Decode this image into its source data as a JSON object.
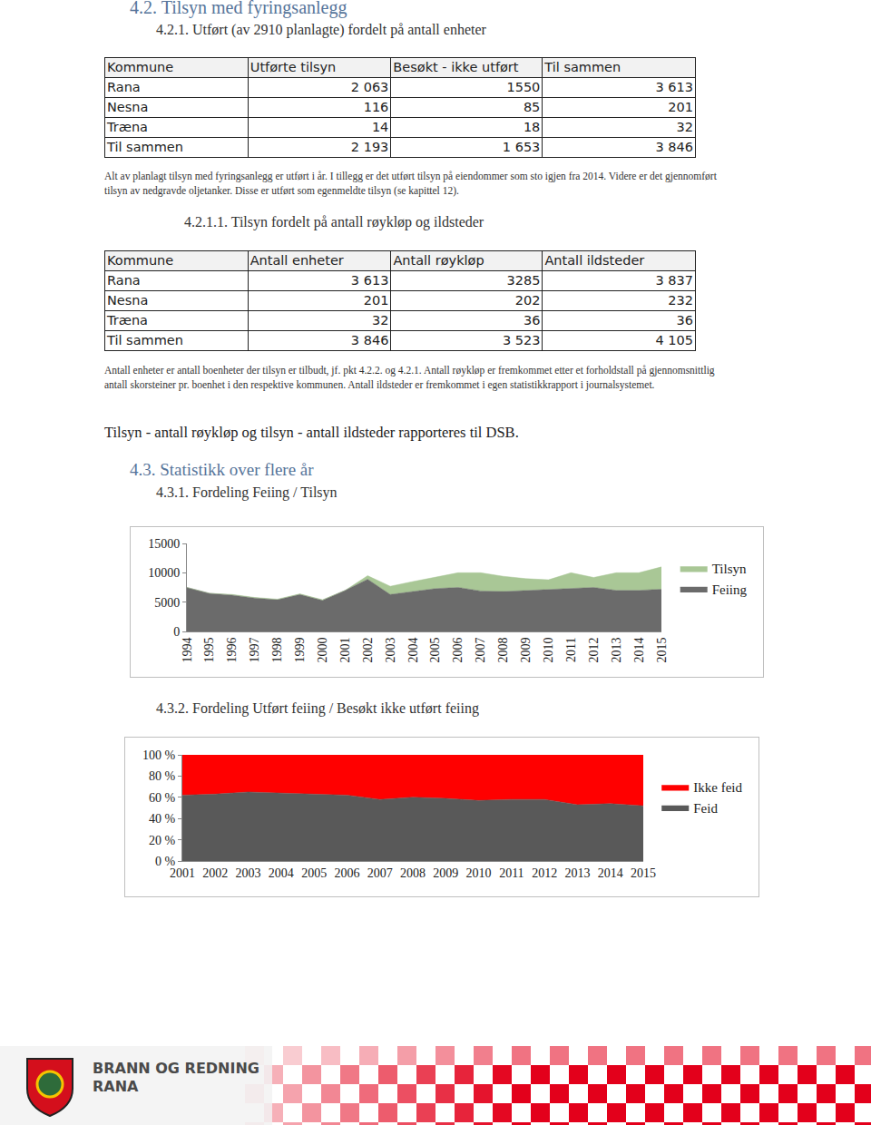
{
  "header": {
    "section": "4.2. Tilsyn med fyringsanlegg",
    "subsection": "4.2.1. Utført (av 2910 planlagte) fordelt på antall enheter"
  },
  "table1": {
    "columns": [
      "Kommune",
      "Utførte tilsyn",
      "Besøkt - ikke utført",
      "Til sammen"
    ],
    "rows": [
      [
        "Rana",
        "2 063",
        "1550",
        "3 613"
      ],
      [
        "Nesna",
        "116",
        "85",
        "201"
      ],
      [
        "Træna",
        "14",
        "18",
        "32"
      ],
      [
        "Til sammen",
        "2 193",
        "1 653",
        "3 846"
      ]
    ]
  },
  "note1": "Alt av planlagt tilsyn med fyringsanlegg er utført i år. I tillegg er det utført tilsyn på eiendommer som sto igjen fra 2014. Videre er det gjennomført tilsyn av nedgravde oljetanker. Disse er utført som egenmeldte tilsyn (se kapittel 12).",
  "subsection2": "4.2.1.1. Tilsyn fordelt på antall røykløp og ildsteder",
  "table2": {
    "columns": [
      "Kommune",
      "Antall enheter",
      "Antall røykløp",
      "Antall ildsteder"
    ],
    "rows": [
      [
        "Rana",
        "3 613",
        "3285",
        "3 837"
      ],
      [
        "Nesna",
        "201",
        "202",
        "232"
      ],
      [
        "Træna",
        "32",
        "36",
        "36"
      ],
      [
        "Til sammen",
        "3 846",
        "3 523",
        "4 105"
      ]
    ]
  },
  "note2": "Antall enheter er antall boenheter der tilsyn er tilbudt, jf. pkt 4.2.2. og 4.2.1. Antall røykløp er fremkommet etter et forholdstall på gjennomsnittlig antall skorsteiner pr. boenhet i den respektive kommunen. Antall ildsteder er fremkommet i egen statistikkrapport i journalsystemet.",
  "paragraph": "Tilsyn - antall røykløp og tilsyn - antall ildsteder rapporteres til DSB.",
  "section2": "4.3. Statistikk over flere år",
  "chart_data": [
    {
      "type": "area",
      "title": "4.3.1. Fordeling Feiing / Tilsyn",
      "stacked": true,
      "grid": false,
      "legend": "right",
      "categories": [
        "1994",
        "1995",
        "1996",
        "1997",
        "1998",
        "1999",
        "2000",
        "2001",
        "2002",
        "2003",
        "2004",
        "2005",
        "2006",
        "2007",
        "2008",
        "2009",
        "2010",
        "2011",
        "2012",
        "2013",
        "2014",
        "2015"
      ],
      "series": [
        {
          "name": "Feiing",
          "color": "#6b6b6b",
          "values": [
            7500,
            6500,
            6200,
            5700,
            5400,
            6300,
            5300,
            7000,
            8900,
            6300,
            6800,
            7300,
            7500,
            6900,
            6800,
            7000,
            7200,
            7300,
            7500,
            7000,
            7000,
            7200
          ]
        },
        {
          "name": "Tilsyn",
          "color": "#a9c796",
          "values": [
            0,
            0,
            100,
            100,
            100,
            100,
            100,
            0,
            600,
            1400,
            1700,
            1900,
            2500,
            3100,
            2600,
            2000,
            1600,
            2700,
            1700,
            3000,
            3000,
            3800
          ]
        }
      ],
      "ylim": [
        0,
        15000
      ],
      "yticks": [
        0,
        5000,
        10000,
        15000
      ]
    },
    {
      "type": "area",
      "title": "4.3.2. Fordeling Utført feiing / Besøkt ikke utført feiing",
      "stacked": true,
      "grid": false,
      "legend": "right",
      "categories": [
        "2001",
        "2002",
        "2003",
        "2004",
        "2005",
        "2006",
        "2007",
        "2008",
        "2009",
        "2010",
        "2011",
        "2012",
        "2013",
        "2014",
        "2015"
      ],
      "series": [
        {
          "name": "Feid",
          "color": "#595959",
          "values": [
            62,
            63,
            65,
            64,
            63,
            62,
            58,
            60,
            59,
            57,
            58,
            58,
            53,
            54,
            52
          ]
        },
        {
          "name": "Ikke feid",
          "color": "#ff0000",
          "values": [
            38,
            37,
            35,
            36,
            37,
            38,
            42,
            40,
            41,
            43,
            42,
            42,
            47,
            46,
            48
          ]
        }
      ],
      "ylim": [
        0,
        100
      ],
      "yticks": [
        {
          "value": 0,
          "label": "0 %"
        },
        {
          "value": 20,
          "label": "20 %"
        },
        {
          "value": 40,
          "label": "40 %"
        },
        {
          "value": 60,
          "label": "60 %"
        },
        {
          "value": 80,
          "label": "80 %"
        },
        {
          "value": 100,
          "label": "100 %"
        }
      ]
    }
  ],
  "footer": {
    "line1": "BRANN OG REDNING",
    "line2": "RANA"
  }
}
